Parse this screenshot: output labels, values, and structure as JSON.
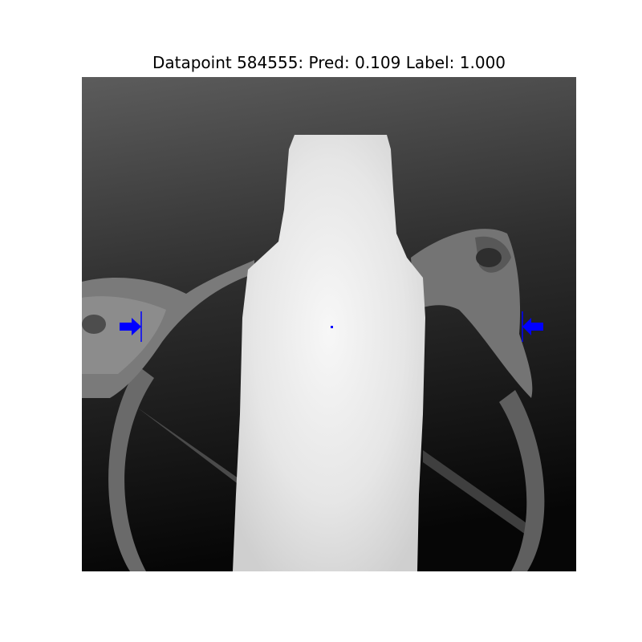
{
  "title": "Datapoint 584555: Pred: 0.109 Label: 1.000",
  "image": {
    "kind": "grayscale depth image",
    "content": "bottle standing among gripper-fixture parts",
    "marker_color": "#0000ff"
  },
  "markers": {
    "grasp_arrows": [
      "arrow-right-icon",
      "arrow-left-icon"
    ],
    "center_point": "dot-icon"
  }
}
